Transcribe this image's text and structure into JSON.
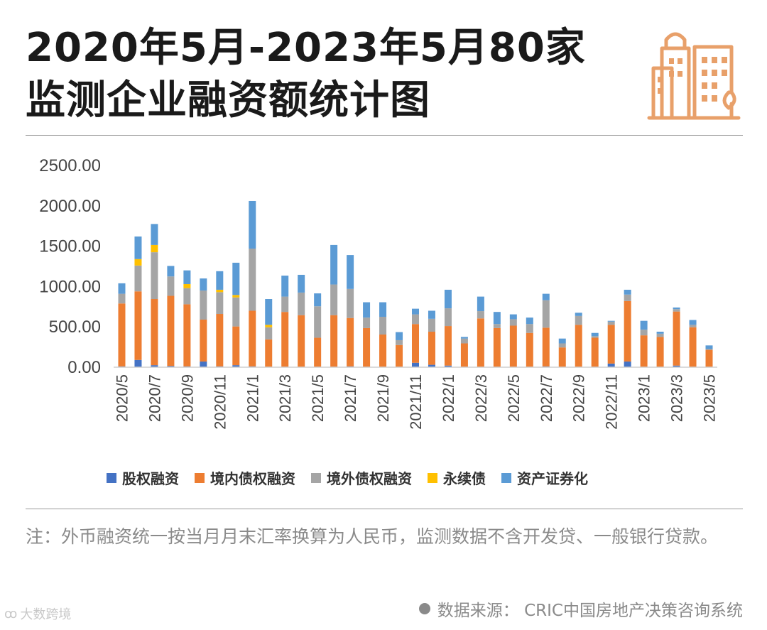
{
  "header": {
    "title_line1": "2020年5月-2023年5月80家",
    "title_line2": "监测企业融资额统计图",
    "icon": "city-buildings-icon"
  },
  "colors": {
    "equity": "#4472C4",
    "domestic_bond": "#ED7D31",
    "overseas_bond": "#A5A5A5",
    "perpetual_bond": "#FFC000",
    "abs": "#5B9BD5",
    "accent": "#E8A06A"
  },
  "chart_data": {
    "type": "bar",
    "stacked": true,
    "x": [
      "2020/5",
      "2020/6",
      "2020/7",
      "2020/8",
      "2020/9",
      "2020/10",
      "2020/11",
      "2020/12",
      "2021/1",
      "2021/2",
      "2021/3",
      "2021/4",
      "2021/5",
      "2021/6",
      "2021/7",
      "2021/8",
      "2021/9",
      "2021/10",
      "2021/11",
      "2021/12",
      "2022/1",
      "2022/2",
      "2022/3",
      "2022/4",
      "2022/5",
      "2022/6",
      "2022/7",
      "2022/8",
      "2022/9",
      "2022/10",
      "2022/11",
      "2022/12",
      "2023/1",
      "2023/2",
      "2023/3",
      "2023/4",
      "2023/5"
    ],
    "tick_labels": [
      "2020/5",
      "2020/7",
      "2020/9",
      "2020/11",
      "2021/1",
      "2021/3",
      "2021/5",
      "2021/7",
      "2021/9",
      "2021/11",
      "2022/1",
      "2022/3",
      "2022/5",
      "2022/7",
      "2022/9",
      "2022/11",
      "2023/1",
      "2023/3",
      "2023/5"
    ],
    "y_ticks": [
      "0.00",
      "500.00",
      "1000.00",
      "1500.00",
      "2000.00",
      "2500.00"
    ],
    "ylim": [
      0,
      2500
    ],
    "legend_position": "bottom",
    "series": [
      {
        "name": "股权融资",
        "color_key": "equity",
        "values": [
          10,
          90,
          25,
          15,
          10,
          70,
          10,
          25,
          10,
          5,
          5,
          5,
          5,
          5,
          10,
          5,
          5,
          5,
          55,
          30,
          20,
          5,
          5,
          5,
          5,
          5,
          10,
          5,
          5,
          5,
          45,
          70,
          5,
          5,
          20,
          5,
          5
        ]
      },
      {
        "name": "境内债权融资",
        "color_key": "domestic_bond",
        "values": [
          780,
          850,
          820,
          870,
          770,
          520,
          650,
          480,
          690,
          340,
          680,
          640,
          360,
          640,
          600,
          480,
          400,
          270,
          480,
          410,
          490,
          290,
          600,
          480,
          510,
          420,
          480,
          240,
          520,
          360,
          480,
          750,
          390,
          370,
          670,
          490,
          210
        ]
      },
      {
        "name": "境外债权融资",
        "color_key": "overseas_bond",
        "values": [
          120,
          320,
          580,
          240,
          200,
          360,
          270,
          360,
          770,
          150,
          190,
          280,
          390,
          380,
          360,
          130,
          220,
          60,
          120,
          160,
          220,
          60,
          90,
          50,
          80,
          110,
          340,
          50,
          110,
          20,
          40,
          80,
          70,
          40,
          30,
          30,
          10
        ]
      },
      {
        "name": "永续债",
        "color_key": "perpetual_bond",
        "values": [
          0,
          80,
          90,
          0,
          50,
          0,
          30,
          30,
          0,
          30,
          0,
          0,
          0,
          0,
          0,
          0,
          0,
          0,
          0,
          0,
          0,
          0,
          0,
          0,
          0,
          0,
          0,
          0,
          0,
          0,
          0,
          0,
          0,
          0,
          0,
          0,
          0
        ]
      },
      {
        "name": "资产证券化",
        "color_key": "abs",
        "values": [
          130,
          280,
          260,
          130,
          170,
          150,
          230,
          400,
          590,
          320,
          260,
          220,
          160,
          490,
          420,
          190,
          180,
          100,
          70,
          100,
          230,
          20,
          180,
          150,
          60,
          80,
          80,
          60,
          40,
          40,
          10,
          60,
          110,
          25,
          20,
          60,
          45
        ]
      }
    ]
  },
  "legend": [
    {
      "label": "股权融资",
      "color_key": "equity"
    },
    {
      "label": "境内债权融资",
      "color_key": "domestic_bond"
    },
    {
      "label": "境外债权融资",
      "color_key": "overseas_bond"
    },
    {
      "label": "永续债",
      "color_key": "perpetual_bond"
    },
    {
      "label": "资产证券化",
      "color_key": "abs"
    }
  ],
  "footer": {
    "note": "注：外币融资统一按当月月末汇率换算为人民币，监测数据不含开发贷、一般银行贷款。",
    "source": "数据来源：  CRIC中国房地产决策咨询系统",
    "watermark_logo": "大数跨境"
  }
}
